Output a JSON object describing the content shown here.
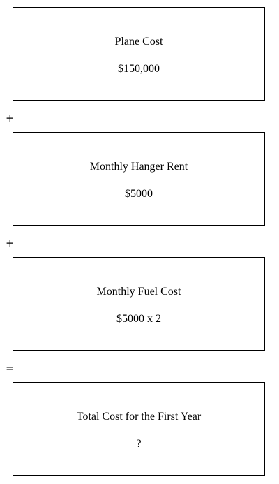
{
  "boxes": [
    {
      "title": "Plane Cost",
      "value": "$150,000"
    },
    {
      "title": "Monthly Hanger Rent",
      "value": "$5000"
    },
    {
      "title": "Monthly Fuel Cost",
      "value": "$5000 x 2"
    },
    {
      "title": "Total Cost for the First Year",
      "value": "?"
    }
  ],
  "operators": [
    "+",
    "+",
    "="
  ]
}
